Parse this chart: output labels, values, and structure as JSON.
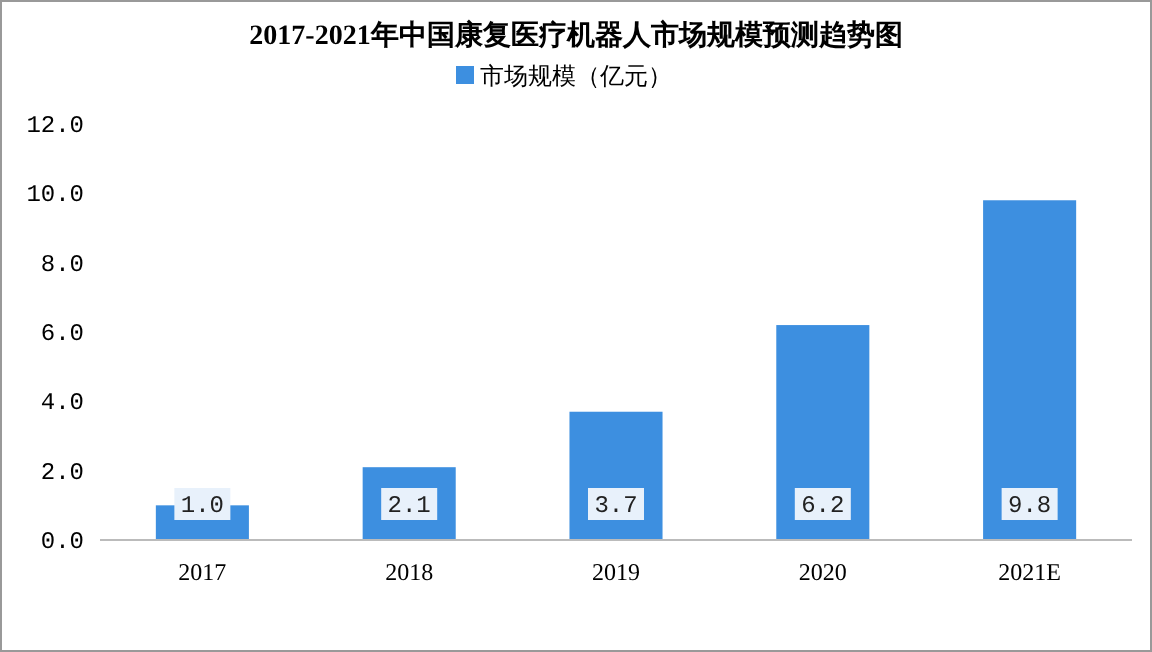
{
  "chart_data": {
    "type": "bar",
    "title": "2017-2021年中国康复医疗机器人市场规模预测趋势图",
    "categories": [
      "2017",
      "2018",
      "2019",
      "2020",
      "2021E"
    ],
    "series": [
      {
        "name": "市场规模（亿元）",
        "color": "#3d8fe0",
        "values": [
          1.0,
          2.1,
          3.7,
          6.2,
          9.8
        ]
      }
    ],
    "value_labels": [
      "1.0",
      "2.1",
      "3.7",
      "6.2",
      "9.8"
    ],
    "ylim": [
      0,
      12
    ],
    "yticks": [
      {
        "value": 0,
        "label": "0.0"
      },
      {
        "value": 2,
        "label": "2.0"
      },
      {
        "value": 4,
        "label": "4.0"
      },
      {
        "value": 6,
        "label": "6.0"
      },
      {
        "value": 8,
        "label": "8.0"
      },
      {
        "value": 10,
        "label": "10.0"
      },
      {
        "value": 12,
        "label": "12.0"
      }
    ],
    "legend": "top",
    "grid": false
  }
}
